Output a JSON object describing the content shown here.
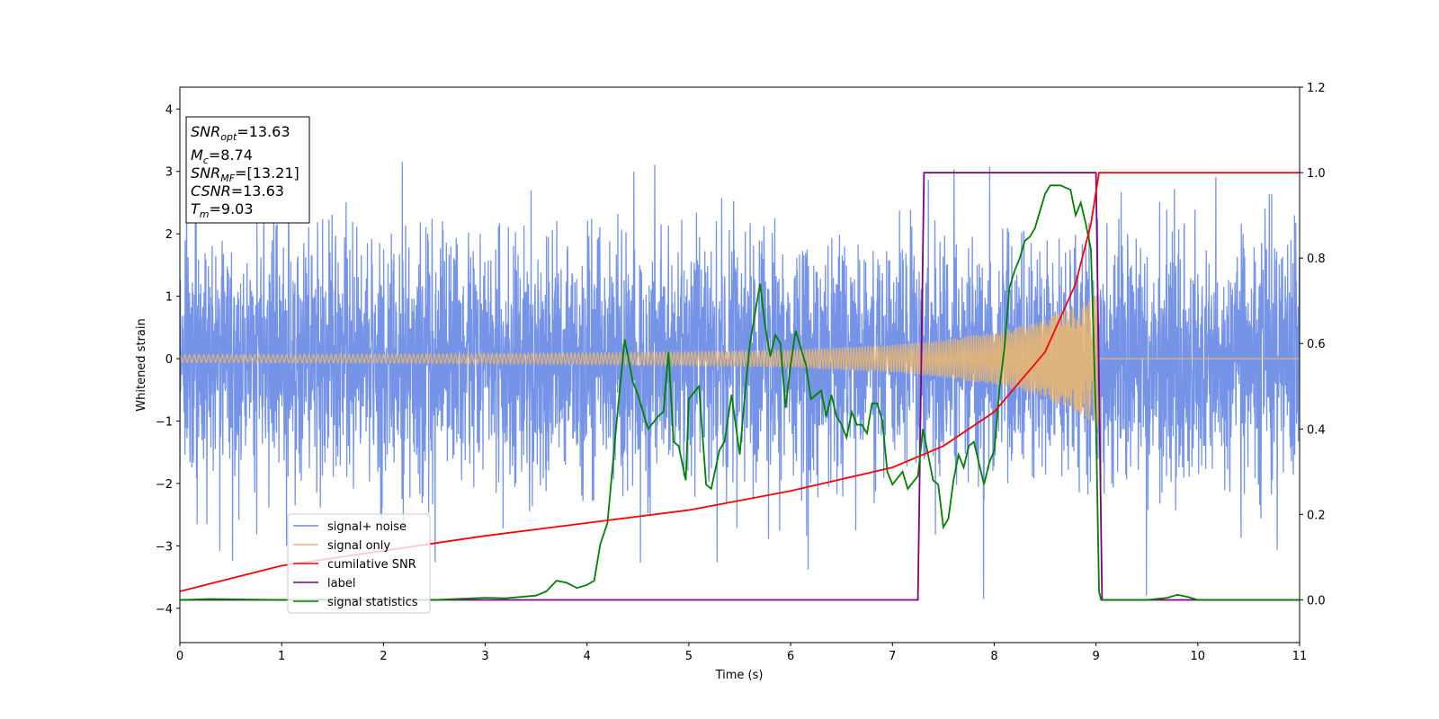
{
  "chart_data": {
    "type": "line",
    "xlabel": "Time (s)",
    "ylabel": "Whitened strain",
    "xlim": [
      0,
      11
    ],
    "ylim": [
      -4.55,
      4.35
    ],
    "y2lim": [
      -0.1,
      1.2
    ],
    "x_ticks": [
      "0",
      "1",
      "2",
      "3",
      "4",
      "5",
      "6",
      "7",
      "8",
      "9",
      "10",
      "11"
    ],
    "y_ticks": [
      "4",
      "3",
      "2",
      "1",
      "0",
      "−1",
      "−2",
      "−3",
      "−4"
    ],
    "y2_ticks": [
      "1.2",
      "1.0",
      "0.8",
      "0.6",
      "0.4",
      "0.2",
      "0.0"
    ],
    "grid": false,
    "legend_position": "lower-left",
    "legend": [
      "signal+ noise",
      "signal only",
      "cumilative SNR",
      "label",
      "signal statistics"
    ],
    "colors": {
      "noise": "#6f8ee6",
      "signal": "#e8b571",
      "csnr": "#ff0000",
      "label": "#800080",
      "stats": "#008000"
    },
    "info_box": {
      "snr_opt_main": "SNR",
      "snr_opt_sub": "opt",
      "snr_opt_value": "=13.63",
      "mc_main": "M",
      "mc_sub": "c",
      "mc_value": "=8.74",
      "snr_mf_main": "SNR",
      "snr_mf_sub": "MF",
      "snr_mf_value": "=[13.21]",
      "csnr_main": "CSNR",
      "csnr_value": "=13.63",
      "tm_main": "T",
      "tm_sub": "m",
      "tm_value": "=9.03"
    },
    "noise_envelope": {
      "typical_amplitude": 2.0,
      "max_amplitude": 4.0
    },
    "signal_envelope": {
      "x": [
        0,
        2,
        4,
        5,
        6,
        7,
        7.5,
        8,
        8.5,
        8.8,
        9.0,
        9.02,
        9.03,
        11
      ],
      "amplitude": [
        0.06,
        0.07,
        0.09,
        0.11,
        0.14,
        0.22,
        0.3,
        0.42,
        0.62,
        0.85,
        1.05,
        1.15,
        0,
        0
      ]
    },
    "cumulative_snr": {
      "x": [
        0,
        1,
        2,
        3,
        4,
        5,
        6,
        7,
        7.5,
        8,
        8.5,
        8.8,
        8.95,
        9.03,
        9.04,
        11
      ],
      "y": [
        0.02,
        0.08,
        0.115,
        0.15,
        0.18,
        0.21,
        0.255,
        0.31,
        0.36,
        0.44,
        0.58,
        0.74,
        0.88,
        1.0,
        1.0,
        1.0
      ]
    },
    "label_step": {
      "x": [
        0,
        7.25,
        7.31,
        9.0,
        9.06,
        11
      ],
      "y": [
        0,
        0,
        1,
        1,
        0,
        0
      ]
    },
    "signal_statistics": {
      "x": [
        0,
        0.3,
        1,
        2,
        2.5,
        3,
        3.2,
        3.5,
        3.6,
        3.7,
        3.8,
        3.9,
        4.0,
        4.07,
        4.13,
        4.2,
        4.3,
        4.37,
        4.45,
        4.5,
        4.6,
        4.7,
        4.75,
        4.8,
        4.85,
        4.9,
        4.97,
        5.0,
        5.1,
        5.17,
        5.22,
        5.3,
        5.35,
        5.42,
        5.5,
        5.55,
        5.6,
        5.7,
        5.75,
        5.8,
        5.85,
        5.9,
        5.95,
        6.0,
        6.05,
        6.15,
        6.2,
        6.3,
        6.35,
        6.4,
        6.45,
        6.5,
        6.55,
        6.6,
        6.65,
        6.7,
        6.75,
        6.8,
        6.85,
        6.9,
        6.95,
        7.0,
        7.1,
        7.15,
        7.25,
        7.3,
        7.35,
        7.4,
        7.45,
        7.5,
        7.55,
        7.6,
        7.65,
        7.7,
        7.75,
        7.8,
        7.85,
        7.9,
        7.95,
        8.0,
        8.05,
        8.1,
        8.15,
        8.2,
        8.25,
        8.3,
        8.35,
        8.4,
        8.5,
        8.55,
        8.65,
        8.75,
        8.8,
        8.85,
        8.9,
        8.95,
        9.0,
        9.03,
        9.05,
        9.2,
        9.5,
        9.7,
        9.8,
        9.9,
        10.0,
        10.5,
        11
      ],
      "y": [
        0.0,
        0.002,
        0.0,
        0.002,
        0.0,
        0.005,
        0.004,
        0.01,
        0.02,
        0.045,
        0.04,
        0.028,
        0.035,
        0.045,
        0.13,
        0.18,
        0.44,
        0.61,
        0.51,
        0.48,
        0.4,
        0.43,
        0.44,
        0.58,
        0.37,
        0.36,
        0.28,
        0.47,
        0.5,
        0.27,
        0.26,
        0.35,
        0.37,
        0.48,
        0.34,
        0.48,
        0.6,
        0.74,
        0.64,
        0.57,
        0.62,
        0.6,
        0.45,
        0.55,
        0.63,
        0.55,
        0.47,
        0.49,
        0.43,
        0.48,
        0.43,
        0.41,
        0.38,
        0.44,
        0.41,
        0.41,
        0.39,
        0.46,
        0.46,
        0.42,
        0.3,
        0.27,
        0.3,
        0.26,
        0.29,
        0.4,
        0.34,
        0.28,
        0.27,
        0.17,
        0.19,
        0.28,
        0.34,
        0.31,
        0.36,
        0.37,
        0.32,
        0.27,
        0.32,
        0.35,
        0.49,
        0.59,
        0.73,
        0.77,
        0.8,
        0.84,
        0.85,
        0.87,
        0.95,
        0.97,
        0.97,
        0.96,
        0.9,
        0.93,
        0.88,
        0.82,
        0.42,
        0.02,
        0.0,
        0.0,
        0.0,
        0.005,
        0.012,
        0.007,
        0.0,
        0.0,
        0.0
      ]
    }
  }
}
